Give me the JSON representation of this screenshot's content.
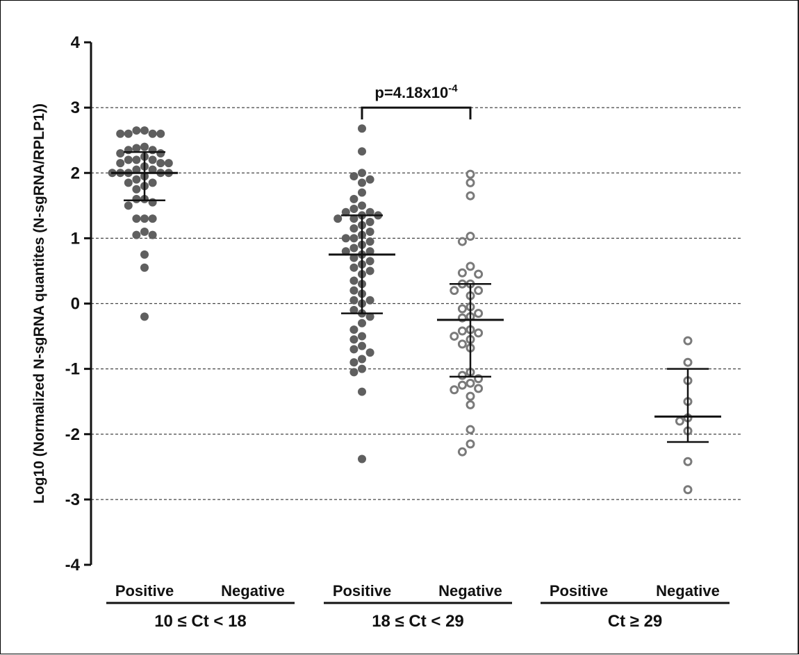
{
  "chart_data": {
    "type": "scatter",
    "title": "",
    "ylabel": "Log10 (Normalized N-sgRNA quantites (N-sgRNA/RPLP1))",
    "ylim": [
      -4,
      4
    ],
    "yticks": [
      "4",
      "3",
      "2",
      "1",
      "0",
      "-1",
      "-2",
      "-3",
      "-4"
    ],
    "ytick_values": [
      4,
      3,
      2,
      1,
      0,
      -1,
      -2,
      -3,
      -4
    ],
    "grid": "horizontal dashed",
    "categories": [
      "Positive",
      "Negative",
      "Positive",
      "Negative",
      "Positive",
      "Negative"
    ],
    "groups": [
      "10 ≤ Ct < 18",
      "18 ≤ Ct < 29",
      "Ct ≥ 29"
    ],
    "annotation": {
      "text": "p=4.18x10",
      "superscript": "-4",
      "between": [
        2,
        3
      ],
      "y": 3.0
    },
    "colors": {
      "positive_fill": "#5f5f5f",
      "negative_stroke": "#7a7a7a",
      "grid": "#444444",
      "axis": "#111111"
    },
    "series": [
      {
        "category_index": 0,
        "marker": "filled",
        "median": 2.0,
        "q1": 1.58,
        "q3": 2.32,
        "points": [
          2.65,
          2.6,
          2.6,
          2.6,
          2.6,
          2.65,
          2.4,
          2.35,
          2.38,
          2.35,
          2.3,
          2.25,
          2.3,
          2.2,
          2.2,
          2.15,
          2.15,
          2.15,
          2.2,
          2.1,
          2.05,
          2.05,
          2.0,
          2.0,
          2.0,
          2.0,
          2.0,
          1.95,
          1.9,
          1.85,
          1.85,
          1.8,
          1.75,
          1.6,
          1.6,
          1.55,
          1.5,
          1.3,
          1.3,
          1.3,
          1.1,
          1.05,
          1.05,
          0.75,
          0.55,
          -0.2
        ]
      },
      {
        "category_index": 2,
        "marker": "filled",
        "median": 0.75,
        "q1": -0.15,
        "q3": 1.35,
        "points": [
          2.68,
          2.33,
          2.0,
          1.95,
          1.9,
          1.85,
          1.7,
          1.6,
          1.5,
          1.45,
          1.4,
          1.4,
          1.35,
          1.35,
          1.3,
          1.3,
          1.25,
          1.2,
          1.15,
          1.1,
          1.05,
          1.0,
          1.0,
          0.95,
          0.9,
          0.85,
          0.8,
          0.8,
          0.75,
          0.7,
          0.65,
          0.6,
          0.55,
          0.5,
          0.45,
          0.35,
          0.3,
          0.2,
          0.15,
          0.05,
          0.05,
          0.0,
          -0.1,
          -0.15,
          -0.2,
          -0.3,
          -0.4,
          -0.5,
          -0.55,
          -0.65,
          -0.7,
          -0.75,
          -0.85,
          -0.9,
          -1.0,
          -1.05,
          -1.35,
          -2.38
        ]
      },
      {
        "category_index": 3,
        "marker": "open",
        "median": -0.25,
        "q1": -1.12,
        "q3": 0.3,
        "points": [
          1.98,
          1.85,
          1.65,
          1.03,
          0.95,
          0.57,
          0.47,
          0.45,
          0.3,
          0.3,
          0.2,
          0.2,
          0.12,
          -0.05,
          -0.08,
          -0.15,
          -0.2,
          -0.22,
          -0.4,
          -0.42,
          -0.45,
          -0.5,
          -0.55,
          -0.62,
          -0.68,
          -1.05,
          -1.1,
          -1.15,
          -1.22,
          -1.25,
          -1.3,
          -1.32,
          -1.42,
          -1.55,
          -1.93,
          -2.15,
          -2.27
        ]
      },
      {
        "category_index": 5,
        "marker": "open",
        "median": -1.73,
        "q1": -2.12,
        "q3": -1.0,
        "points": [
          -0.57,
          -0.9,
          -1.18,
          -1.5,
          -1.75,
          -1.8,
          -1.95,
          -2.42,
          -2.85
        ]
      }
    ]
  }
}
